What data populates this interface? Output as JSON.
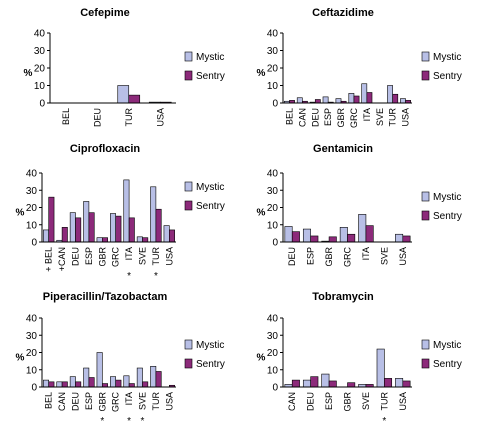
{
  "y_unit": "%",
  "legend": {
    "mystic": "Mystic",
    "sentry": "Sentry",
    "mystic_color": "#b8bfe6",
    "sentry_color": "#8c2a7a"
  },
  "chart_data": [
    {
      "type": "bar",
      "title": "Cefepime",
      "ylim": [
        0,
        40
      ],
      "yticks": [
        0,
        10,
        20,
        30,
        40
      ],
      "categories": [
        "BEL",
        "DEU",
        "TUR",
        "USA"
      ],
      "series": [
        {
          "name": "Mystic",
          "values": [
            0,
            0,
            10,
            0.5
          ]
        },
        {
          "name": "Sentry",
          "values": [
            0,
            0,
            4.5,
            0.5
          ]
        }
      ]
    },
    {
      "type": "bar",
      "title": "Ceftazidime",
      "ylim": [
        0,
        40
      ],
      "yticks": [
        0,
        10,
        20,
        30,
        40
      ],
      "categories": [
        "BEL",
        "CAN",
        "DEU",
        "ESP",
        "GBR",
        "GRC",
        "ITA",
        "SVE",
        "TUR",
        "USA"
      ],
      "series": [
        {
          "name": "Mystic",
          "values": [
            1,
            3,
            0.5,
            3.5,
            2.5,
            5.5,
            11,
            0,
            10,
            2.5
          ]
        },
        {
          "name": "Sentry",
          "values": [
            1.5,
            1,
            2,
            0.5,
            1,
            4,
            6,
            0,
            5,
            1.5
          ]
        }
      ]
    },
    {
      "type": "bar",
      "title": "Ciprofloxacin",
      "ylim": [
        0,
        40
      ],
      "yticks": [
        0,
        10,
        20,
        30,
        40
      ],
      "categories": [
        "+ BEL",
        "+CAN",
        "DEU",
        "ESP",
        "GBR",
        "GRC",
        "ITA",
        "SVE",
        "TUR",
        "USA"
      ],
      "markers": [
        "",
        "",
        "",
        "",
        "",
        "",
        "*",
        "",
        "*",
        ""
      ],
      "series": [
        {
          "name": "Mystic",
          "values": [
            7,
            1,
            17,
            23.5,
            2.5,
            16.5,
            36,
            3,
            32,
            9.5
          ]
        },
        {
          "name": "Sentry",
          "values": [
            26,
            8.5,
            14,
            17,
            2.5,
            15,
            14,
            2.5,
            19,
            7
          ]
        }
      ]
    },
    {
      "type": "bar",
      "title": "Gentamicin",
      "ylim": [
        0,
        40
      ],
      "yticks": [
        0,
        10,
        20,
        30,
        40
      ],
      "categories": [
        "DEU",
        "ESP",
        "GBR",
        "GRC",
        "ITA",
        "SVE",
        "USA"
      ],
      "series": [
        {
          "name": "Mystic",
          "values": [
            9,
            7.5,
            0.5,
            8.5,
            16,
            0,
            4.5
          ]
        },
        {
          "name": "Sentry",
          "values": [
            6,
            3.5,
            3,
            4.5,
            9.5,
            0,
            3.5
          ]
        }
      ]
    },
    {
      "type": "bar",
      "title": "Piperacillin/Tazobactam",
      "ylim": [
        0,
        40
      ],
      "yticks": [
        0,
        10,
        20,
        30,
        40
      ],
      "categories": [
        "BEL",
        "CAN",
        "DEU",
        "ESP",
        "GBR",
        "GRC",
        "ITA",
        "SVE",
        "TUR",
        "USA"
      ],
      "markers": [
        "",
        "",
        "",
        "",
        "*",
        "",
        "*",
        "*",
        "",
        ""
      ],
      "series": [
        {
          "name": "Mystic",
          "values": [
            4,
            3,
            6,
            11,
            20,
            6,
            6.5,
            11,
            12,
            0
          ]
        },
        {
          "name": "Sentry",
          "values": [
            3,
            3,
            3,
            5.5,
            2,
            4,
            2,
            3,
            9,
            1
          ]
        }
      ]
    },
    {
      "type": "bar",
      "title": "Tobramycin",
      "ylim": [
        0,
        40
      ],
      "yticks": [
        0,
        10,
        20,
        30,
        40
      ],
      "categories": [
        "CAN",
        "DEU",
        "ESP",
        "GBR",
        "SVE",
        "TUR",
        "USA"
      ],
      "markers": [
        "",
        "",
        "",
        "",
        "",
        "*",
        ""
      ],
      "series": [
        {
          "name": "Mystic",
          "values": [
            1.5,
            4,
            7.5,
            0,
            1.5,
            22,
            5
          ]
        },
        {
          "name": "Sentry",
          "values": [
            4,
            6,
            3.5,
            2.5,
            1.5,
            5,
            3.5
          ]
        }
      ]
    }
  ]
}
